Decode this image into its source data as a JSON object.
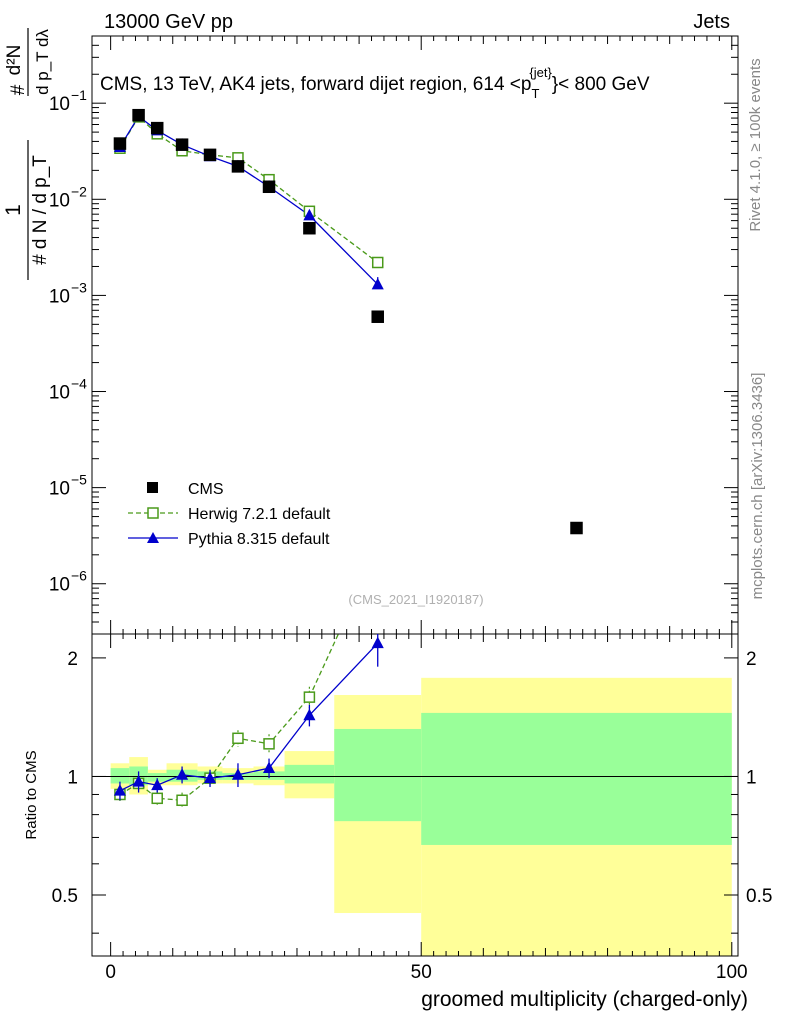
{
  "header": {
    "left": "13000 GeV pp",
    "right": "Jets"
  },
  "side_labels": {
    "rivet": "Rivet 4.1.0, ≥ 100k events",
    "mcplots": "mcplots.cern.ch [arXiv:1306.3436]"
  },
  "chart_data": {
    "type": "scatter",
    "title": "CMS, 13 TeV, AK4 jets, forward dijet region, 614 <p",
    "title_sub": "T",
    "title_sup": "{jet}",
    "title_end": "}< 800 GeV",
    "watermark": "(CMS_2021_I1920187)",
    "xlabel": "groomed multiplicity (charged-only)",
    "ylabel_ratio": "Ratio to CMS",
    "ylabel_main": {
      "left_frac": "# d N / d p_T",
      "left_one": "1",
      "right_top": "d²N",
      "right_bottom": "d p_T dλ",
      "right_hash": "#"
    },
    "xlim": [
      -3,
      101
    ],
    "ylim_main": [
      3e-07,
      0.5
    ],
    "ylim_ratio": [
      0.35,
      2.3
    ],
    "yscale_main": "log",
    "x_ticks": [
      0,
      50,
      100
    ],
    "x_tick_labels": [
      "0",
      "50",
      "100"
    ],
    "y_ticks_main": [
      1e-06,
      1e-05,
      0.0001,
      0.001,
      0.01,
      0.1
    ],
    "y_tick_labels_main": [
      {
        "base": "10",
        "exp": "−6"
      },
      {
        "base": "10",
        "exp": "−5"
      },
      {
        "base": "10",
        "exp": "−4"
      },
      {
        "base": "10",
        "exp": "−3"
      },
      {
        "base": "10",
        "exp": "−2"
      },
      {
        "base": "10",
        "exp": "−1"
      }
    ],
    "y_ticks_ratio": [
      0.5,
      1,
      2
    ],
    "y_tick_labels_ratio": [
      "0.5",
      "1",
      "2"
    ],
    "legend_position": "bottom-left",
    "bins": [
      [
        0,
        3
      ],
      [
        3,
        6
      ],
      [
        6,
        9
      ],
      [
        9,
        14
      ],
      [
        14,
        18
      ],
      [
        18,
        23
      ],
      [
        23,
        28
      ],
      [
        28,
        36
      ],
      [
        36,
        50
      ],
      [
        50,
        100
      ]
    ],
    "bands_yellow": [
      [
        0.93,
        1.08
      ],
      [
        0.9,
        1.12
      ],
      [
        0.95,
        1.04
      ],
      [
        0.95,
        1.08
      ],
      [
        0.96,
        1.06
      ],
      [
        0.96,
        1.05
      ],
      [
        0.95,
        1.06
      ],
      [
        0.88,
        1.16
      ],
      [
        0.45,
        1.61
      ],
      [
        0.35,
        1.78
      ]
    ],
    "bands_green": [
      [
        0.96,
        1.05
      ],
      [
        0.95,
        1.06
      ],
      [
        0.97,
        1.02
      ],
      [
        0.97,
        1.04
      ],
      [
        0.98,
        1.03
      ],
      [
        0.98,
        1.02
      ],
      [
        0.98,
        1.03
      ],
      [
        0.96,
        1.07
      ],
      [
        0.77,
        1.32
      ],
      [
        0.67,
        1.45
      ]
    ],
    "series": [
      {
        "name": "CMS",
        "color": "#000000",
        "marker": "square-filled",
        "x": [
          1.5,
          4.5,
          7.5,
          11.5,
          16,
          20.5,
          25.5,
          32,
          43,
          75
        ],
        "y": [
          0.038,
          0.075,
          0.055,
          0.037,
          0.029,
          0.022,
          0.0135,
          0.005,
          0.0006,
          3.8e-06
        ]
      },
      {
        "name": "Herwig 7.2.1 default",
        "color": "#4a9a1a",
        "marker": "square-open",
        "line": "dashed",
        "x": [
          1.5,
          4.5,
          7.5,
          11.5,
          16,
          20.5,
          25.5,
          32,
          43
        ],
        "y": [
          0.034,
          0.072,
          0.048,
          0.032,
          0.029,
          0.027,
          0.016,
          0.0075,
          0.0022
        ],
        "ratio": [
          0.9,
          0.96,
          0.88,
          0.87,
          0.99,
          1.25,
          1.21,
          1.59,
          3.8
        ],
        "ratio_err": [
          0.04,
          0.04,
          0.04,
          0.04,
          0.04,
          0.06,
          0.07,
          0.1,
          0.0
        ]
      },
      {
        "name": "Pythia 8.315 default",
        "color": "#0000cc",
        "marker": "triangle-filled",
        "line": "solid",
        "x": [
          1.5,
          4.5,
          7.5,
          11.5,
          16,
          20.5,
          25.5,
          32,
          43
        ],
        "y": [
          0.035,
          0.073,
          0.052,
          0.037,
          0.028,
          0.022,
          0.0135,
          0.0068,
          0.0013
        ],
        "y_err_top": [
          0,
          0,
          0,
          0,
          0,
          0,
          0,
          0,
          0.00025
        ],
        "ratio": [
          0.92,
          0.97,
          0.95,
          1.01,
          0.99,
          1.01,
          1.05,
          1.43,
          2.18
        ],
        "ratio_err": [
          0.05,
          0.06,
          0.04,
          0.05,
          0.05,
          0.07,
          0.06,
          0.09,
          0.28
        ]
      }
    ]
  }
}
